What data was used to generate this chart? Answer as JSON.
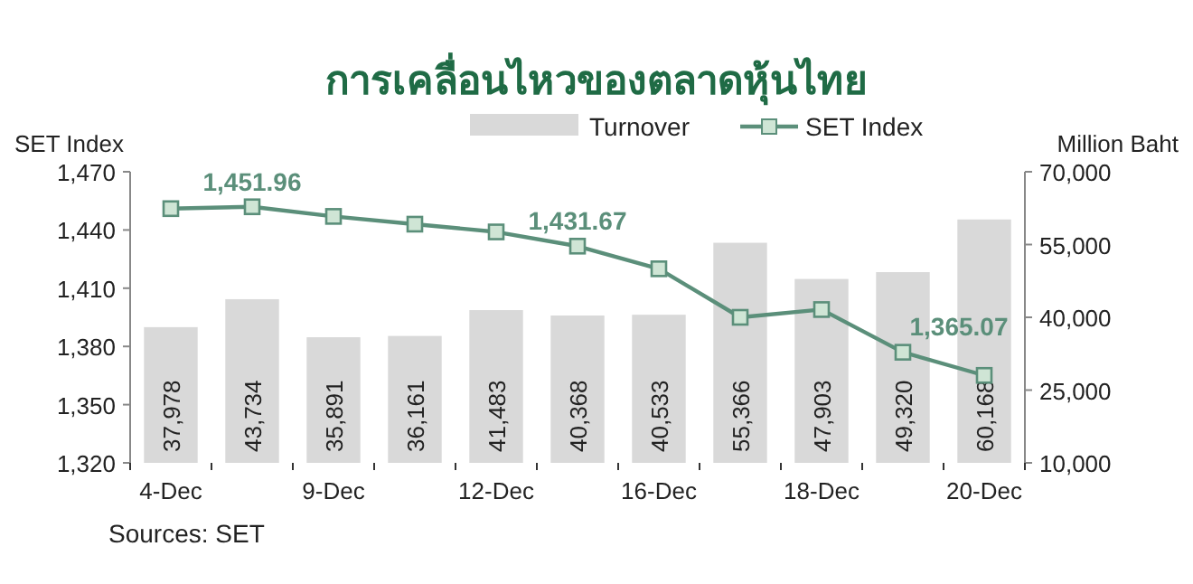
{
  "chart_data": {
    "type": "bar",
    "title": "การเคลื่อนไหวของตลาดหุ้นไทย",
    "ylabel": "SET Index",
    "y2label": "Million Baht",
    "categories": [
      "4-Dec",
      null,
      "9-Dec",
      null,
      "12-Dec",
      null,
      "16-Dec",
      null,
      "18-Dec",
      null,
      "20-Dec"
    ],
    "series": [
      {
        "name": "Turnover",
        "axis": "y2",
        "color": "#d9d9d9",
        "values": [
          37978,
          43734,
          35891,
          36161,
          41483,
          40368,
          40533,
          55366,
          47903,
          49320,
          60168
        ],
        "value_labels": [
          "37,978",
          "43,734",
          "35,891",
          "36,161",
          "41,483",
          "40,368",
          "40,533",
          "55,366",
          "47,903",
          "49,320",
          "60,168"
        ]
      },
      {
        "name": "SET Index",
        "type": "line",
        "axis": "y",
        "color": "#5b8f7a",
        "values": [
          1451,
          1451.96,
          1447,
          1443,
          1439,
          1431.67,
          1420,
          1395,
          1399,
          1377,
          1365.07
        ],
        "value_labels": [
          null,
          "1,451.96",
          null,
          null,
          null,
          "1,431.67",
          null,
          null,
          null,
          null,
          "1,365.07"
        ]
      }
    ],
    "marker": "square",
    "legend": "top",
    "ylim": [
      1320,
      1470
    ],
    "yticks": [
      {
        "value": 1320,
        "label": "1,320"
      },
      {
        "value": 1350,
        "label": "1,350"
      },
      {
        "value": 1380,
        "label": "1,380"
      },
      {
        "value": 1410,
        "label": "1,410"
      },
      {
        "value": 1440,
        "label": "1,440"
      },
      {
        "value": 1470,
        "label": "1,470"
      }
    ],
    "y2lim": [
      10000,
      70000
    ],
    "y2ticks": [
      {
        "value": 10000,
        "label": "10,000"
      },
      {
        "value": 25000,
        "label": "25,000"
      },
      {
        "value": 40000,
        "label": "40,000"
      },
      {
        "value": 55000,
        "label": "55,000"
      },
      {
        "value": 70000,
        "label": "70,000"
      }
    ],
    "annotations": [
      "Sources: SET"
    ]
  }
}
